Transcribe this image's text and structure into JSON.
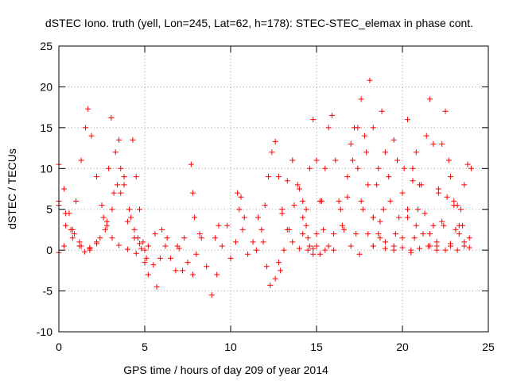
{
  "chart_data": {
    "type": "scatter",
    "title": "dSTEC Iono. truth (yell, Lon=245, Lat=62, h=178): STEC-STEC_elemax in phase cont.",
    "xlabel": "GPS time / hours of day 209 of year 2014",
    "ylabel": "dSTEC  / TECUs",
    "xlim": [
      0,
      25
    ],
    "ylim": [
      -10,
      25
    ],
    "x_ticks": [
      0,
      5,
      10,
      15,
      20,
      25
    ],
    "y_ticks": [
      -10,
      -5,
      0,
      5,
      10,
      15,
      20,
      25
    ],
    "grid": true,
    "legend": "none",
    "marker": "+",
    "color": "#ff0000",
    "series": [
      {
        "points": [
          [
            0.0,
            10.5
          ],
          [
            0.3,
            7.5
          ],
          [
            0.6,
            4.5
          ],
          [
            0.9,
            2.0
          ],
          [
            1.2,
            0.5
          ],
          [
            1.5,
            -0.2
          ],
          [
            1.8,
            0.0
          ],
          [
            2.2,
            0.8
          ],
          [
            2.7,
            2.5
          ],
          [
            3.1,
            5.0
          ],
          [
            3.4,
            8.0
          ],
          [
            3.6,
            10.0
          ],
          [
            3.8,
            8.0
          ],
          [
            4.1,
            5.0
          ],
          [
            4.4,
            2.5
          ],
          [
            4.7,
            0.8
          ],
          [
            5.0,
            -1.5
          ],
          [
            5.2,
            -3.0
          ],
          [
            0.0,
            6.0
          ],
          [
            0.4,
            4.5
          ],
          [
            0.8,
            2.5
          ],
          [
            1.2,
            1.0
          ],
          [
            1.8,
            0.3
          ],
          [
            2.4,
            1.5
          ],
          [
            2.8,
            3.5
          ],
          [
            3.2,
            7.0
          ],
          [
            3.5,
            13.5
          ],
          [
            3.8,
            9.0
          ],
          [
            4.2,
            4.0
          ],
          [
            4.6,
            1.5
          ],
          [
            5.0,
            0.0
          ],
          [
            0.0,
            -0.3
          ],
          [
            0.3,
            0.5
          ],
          [
            0.7,
            2.5
          ],
          [
            1.0,
            6.0
          ],
          [
            1.3,
            11.0
          ],
          [
            1.55,
            15.0
          ],
          [
            1.7,
            17.3
          ],
          [
            1.9,
            14.0
          ],
          [
            2.2,
            9.0
          ],
          [
            2.5,
            5.5
          ],
          [
            2.8,
            3.0
          ],
          [
            3.1,
            1.5
          ],
          [
            3.5,
            0.6
          ],
          [
            4.0,
            0.1
          ],
          [
            4.5,
            -0.4
          ],
          [
            0.0,
            5.5
          ],
          [
            0.4,
            3.0
          ],
          [
            0.8,
            1.5
          ],
          [
            1.3,
            0.5
          ],
          [
            1.8,
            0.2
          ],
          [
            2.2,
            1.0
          ],
          [
            2.6,
            4.0
          ],
          [
            2.9,
            10.0
          ],
          [
            3.05,
            16.2
          ],
          [
            3.3,
            12.0
          ],
          [
            3.6,
            7.0
          ],
          [
            4.0,
            3.5
          ],
          [
            4.4,
            1.5
          ],
          [
            4.8,
            0.2
          ],
          [
            4.3,
            13.5
          ],
          [
            4.5,
            9.0
          ],
          [
            4.7,
            5.0
          ],
          [
            4.9,
            1.0
          ],
          [
            5.1,
            -1.0
          ],
          [
            5.2,
            0.5
          ],
          [
            5.5,
            -1.8
          ],
          [
            5.7,
            -4.5
          ],
          [
            5.9,
            -1.0
          ],
          [
            6.2,
            0.5
          ],
          [
            6.5,
            -1.0
          ],
          [
            6.8,
            -2.5
          ],
          [
            7.0,
            0.2
          ],
          [
            7.3,
            1.5
          ],
          [
            7.5,
            -1.5
          ],
          [
            7.8,
            -3.0
          ],
          [
            8.0,
            -0.5
          ],
          [
            8.3,
            1.5
          ],
          [
            8.6,
            -2.0
          ],
          [
            8.9,
            -5.5
          ],
          [
            9.2,
            -3.0
          ],
          [
            9.5,
            0.5
          ],
          [
            9.8,
            3.0
          ],
          [
            10.0,
            -1.0
          ],
          [
            10.3,
            1.0
          ],
          [
            10.5,
            5.0
          ],
          [
            10.7,
            2.5
          ],
          [
            11.0,
            -0.5
          ],
          [
            11.3,
            1.0
          ],
          [
            11.6,
            4.0
          ],
          [
            11.9,
            1.0
          ],
          [
            12.1,
            -2.0
          ],
          [
            12.3,
            -4.3
          ],
          [
            12.6,
            -3.5
          ],
          [
            12.9,
            -2.5
          ],
          [
            7.7,
            10.5
          ],
          [
            7.8,
            7.0
          ],
          [
            7.9,
            4.0
          ],
          [
            8.2,
            2.0
          ],
          [
            9.1,
            1.5
          ],
          [
            9.3,
            3.0
          ],
          [
            10.4,
            7.0
          ],
          [
            10.6,
            6.5
          ],
          [
            10.8,
            4.0
          ],
          [
            6.0,
            2.5
          ],
          [
            6.3,
            1.5
          ],
          [
            5.6,
            2.0
          ],
          [
            6.9,
            0.5
          ],
          [
            7.2,
            -2.5
          ],
          [
            11.5,
            0.0
          ],
          [
            11.8,
            2.5
          ],
          [
            12.0,
            5.5
          ],
          [
            12.2,
            9.0
          ],
          [
            12.4,
            12.0
          ],
          [
            12.6,
            13.3
          ],
          [
            12.8,
            9.0
          ],
          [
            13.0,
            5.0
          ],
          [
            13.3,
            2.5
          ],
          [
            13.6,
            1.0
          ],
          [
            14.0,
            0.2
          ],
          [
            14.5,
            0.0
          ],
          [
            15.0,
            0.5
          ],
          [
            12.8,
            -1.5
          ],
          [
            13.1,
            0.0
          ],
          [
            13.4,
            2.5
          ],
          [
            13.7,
            5.5
          ],
          [
            14.0,
            7.5
          ],
          [
            14.2,
            6.0
          ],
          [
            14.4,
            3.0
          ],
          [
            14.6,
            0.5
          ],
          [
            14.8,
            -0.5
          ],
          [
            13.0,
            4.5
          ],
          [
            13.3,
            8.5
          ],
          [
            13.6,
            11.0
          ],
          [
            13.9,
            8.0
          ],
          [
            14.2,
            4.0
          ],
          [
            14.5,
            1.5
          ],
          [
            14.8,
            0.2
          ],
          [
            15.2,
            -0.5
          ],
          [
            14.2,
            2.0
          ],
          [
            14.4,
            5.0
          ],
          [
            14.6,
            10.0
          ],
          [
            14.8,
            16.0
          ],
          [
            15.0,
            11.0
          ],
          [
            15.2,
            6.0
          ],
          [
            15.4,
            2.5
          ],
          [
            15.7,
            0.5
          ],
          [
            16.0,
            0.0
          ],
          [
            15.0,
            2.0
          ],
          [
            15.3,
            6.0
          ],
          [
            15.5,
            10.0
          ],
          [
            15.7,
            15.0
          ],
          [
            15.9,
            16.5
          ],
          [
            16.1,
            11.0
          ],
          [
            16.3,
            6.0
          ],
          [
            16.6,
            2.5
          ],
          [
            17.0,
            0.5
          ],
          [
            17.5,
            -0.5
          ],
          [
            15.5,
            0.0
          ],
          [
            16.0,
            2.0
          ],
          [
            16.4,
            5.0
          ],
          [
            16.8,
            9.0
          ],
          [
            17.0,
            13.0
          ],
          [
            17.2,
            15.0
          ],
          [
            17.4,
            10.0
          ],
          [
            17.7,
            5.0
          ],
          [
            18.0,
            2.0
          ],
          [
            18.3,
            0.5
          ],
          [
            16.5,
            3.0
          ],
          [
            16.8,
            6.5
          ],
          [
            17.1,
            11.0
          ],
          [
            17.4,
            15.0
          ],
          [
            17.6,
            18.5
          ],
          [
            17.8,
            14.0
          ],
          [
            18.0,
            8.0
          ],
          [
            18.3,
            4.0
          ],
          [
            18.7,
            1.5
          ],
          [
            19.0,
            0.2
          ],
          [
            17.3,
            2.0
          ],
          [
            17.6,
            6.0
          ],
          [
            17.9,
            12.0
          ],
          [
            18.1,
            20.8
          ],
          [
            18.3,
            15.0
          ],
          [
            18.5,
            8.0
          ],
          [
            18.7,
            3.5
          ],
          [
            19.0,
            1.0
          ],
          [
            19.5,
            0.0
          ],
          [
            18.3,
            4.0
          ],
          [
            18.6,
            10.0
          ],
          [
            18.8,
            17.0
          ],
          [
            19.0,
            12.0
          ],
          [
            19.3,
            6.0
          ],
          [
            19.6,
            2.0
          ],
          [
            20.0,
            0.3
          ],
          [
            20.5,
            -0.3
          ],
          [
            18.3,
            0.5
          ],
          [
            18.6,
            2.0
          ],
          [
            18.9,
            5.0
          ],
          [
            19.2,
            9.0
          ],
          [
            19.5,
            13.5
          ],
          [
            19.7,
            11.0
          ],
          [
            20.0,
            7.0
          ],
          [
            20.3,
            4.0
          ],
          [
            20.7,
            1.5
          ],
          [
            21.0,
            0.2
          ],
          [
            19.5,
            0.5
          ],
          [
            19.8,
            4.0
          ],
          [
            20.1,
            10.0
          ],
          [
            20.3,
            16.0
          ],
          [
            20.6,
            10.0
          ],
          [
            20.9,
            5.0
          ],
          [
            21.2,
            2.0
          ],
          [
            21.6,
            0.5
          ],
          [
            22.0,
            0.0
          ],
          [
            20.0,
            1.5
          ],
          [
            20.3,
            5.0
          ],
          [
            20.6,
            8.5
          ],
          [
            20.8,
            12.0
          ],
          [
            21.0,
            8.0
          ],
          [
            21.3,
            4.5
          ],
          [
            21.6,
            2.0
          ],
          [
            22.0,
            0.5
          ],
          [
            22.5,
            0.0
          ],
          [
            20.5,
            0.0
          ],
          [
            20.8,
            3.0
          ],
          [
            21.1,
            8.0
          ],
          [
            21.4,
            14.0
          ],
          [
            21.6,
            18.5
          ],
          [
            21.8,
            13.0
          ],
          [
            22.1,
            7.0
          ],
          [
            22.4,
            3.0
          ],
          [
            22.8,
            0.8
          ],
          [
            23.2,
            0.0
          ],
          [
            21.5,
            0.5
          ],
          [
            21.8,
            3.0
          ],
          [
            22.1,
            7.5
          ],
          [
            22.3,
            13.0
          ],
          [
            22.5,
            17.0
          ],
          [
            22.7,
            11.0
          ],
          [
            23.0,
            5.5
          ],
          [
            23.3,
            2.0
          ],
          [
            23.6,
            0.5
          ],
          [
            22.0,
            1.0
          ],
          [
            22.3,
            3.5
          ],
          [
            22.6,
            6.5
          ],
          [
            22.8,
            9.0
          ],
          [
            23.0,
            6.0
          ],
          [
            23.3,
            3.0
          ],
          [
            23.6,
            1.0
          ],
          [
            23.9,
            0.3
          ],
          [
            22.8,
            0.5
          ],
          [
            23.1,
            2.5
          ],
          [
            23.4,
            5.0
          ],
          [
            23.6,
            8.0
          ],
          [
            23.8,
            10.5
          ],
          [
            24.0,
            10.0
          ],
          [
            23.2,
            5.5
          ],
          [
            23.5,
            3.0
          ],
          [
            23.9,
            1.5
          ]
        ]
      }
    ]
  }
}
